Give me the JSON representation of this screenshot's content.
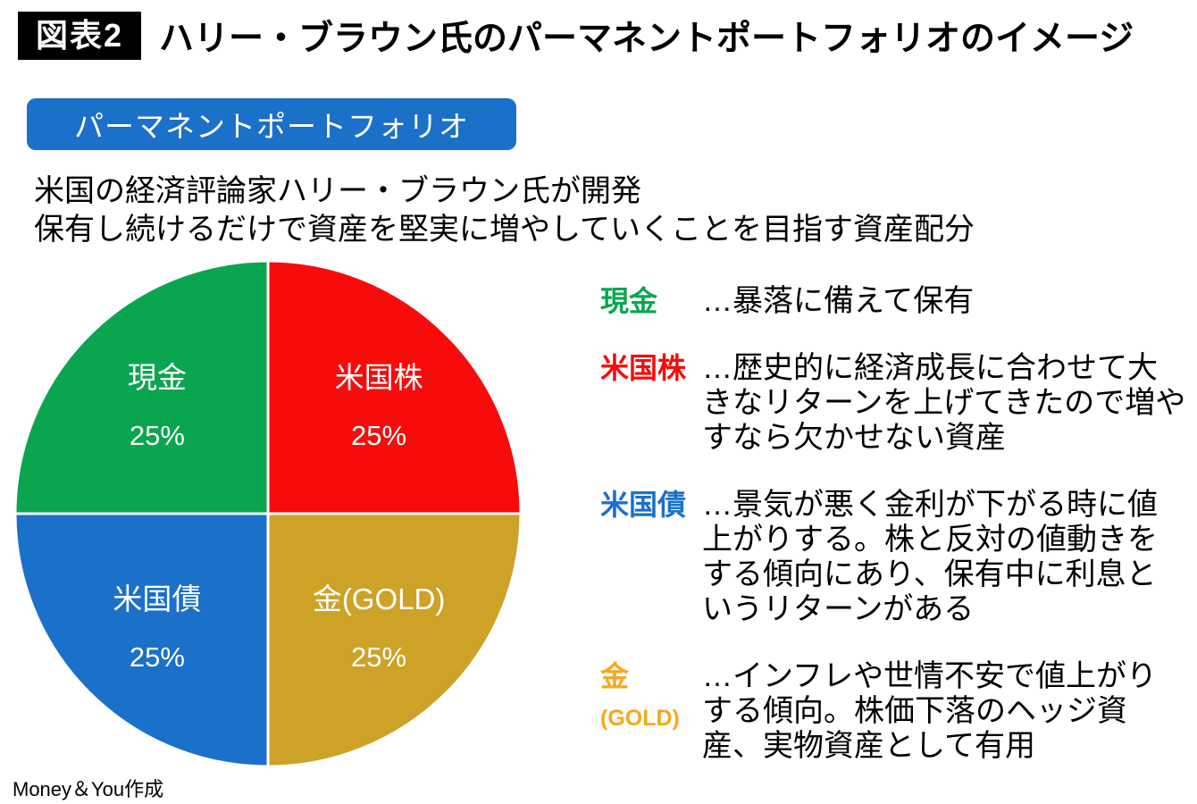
{
  "header": {
    "badge": "図表2",
    "title": "ハリー・ブラウン氏のパーマネントポートフォリオのイメージ"
  },
  "subheader": {
    "label": "パーマネントポートフォリオ"
  },
  "description": {
    "line1": "米国の経済評論家ハリー・ブラウン氏が開発",
    "line2": "保有し続けるだけで資産を堅実に増やしていくことを目指す資産配分"
  },
  "colors": {
    "badge_bg": "#000000",
    "accent_blue": "#1B70C9",
    "green": "#0AA64F",
    "red": "#F80B0B",
    "blue": "#1B70C9",
    "gold": "#CDA227",
    "gold_text": "#F5A81D"
  },
  "chart_data": {
    "type": "pie",
    "title": "パーマネントポートフォリオ",
    "start_angle": 0,
    "legend_position": "right",
    "slices": [
      {
        "label": "米国株",
        "value": 25,
        "pct_label": "25%",
        "color": "#F80B0B"
      },
      {
        "label": "金(GOLD)",
        "value": 25,
        "pct_label": "25%",
        "color": "#CDA227"
      },
      {
        "label": "米国債",
        "value": 25,
        "pct_label": "25%",
        "color": "#1B70C9"
      },
      {
        "label": "現金",
        "value": 25,
        "pct_label": "25%",
        "color": "#0AA64F"
      }
    ]
  },
  "legend": {
    "items": [
      {
        "term": "現金",
        "color": "#0AA64F",
        "desc": "…暴落に備えて保有"
      },
      {
        "term": "米国株",
        "color": "#F80B0B",
        "desc": "…歴史的に経済成長に合わせて大きなリターンを上げてきたので増やすなら欠かせない資産"
      },
      {
        "term": "米国債",
        "color": "#1B70C9",
        "desc": "…景気が悪く金利が下がる時に値上がりする。株と反対の値動きをする傾向にあり、保有中に利息というリターンがある"
      },
      {
        "term": "金",
        "term_sub": "(GOLD)",
        "color": "#F5A81D",
        "desc": "…インフレや世情不安で値上がりする傾向。株価下落のヘッジ資産、実物資産として有用"
      }
    ]
  },
  "footer": {
    "source": "Money＆You作成"
  }
}
